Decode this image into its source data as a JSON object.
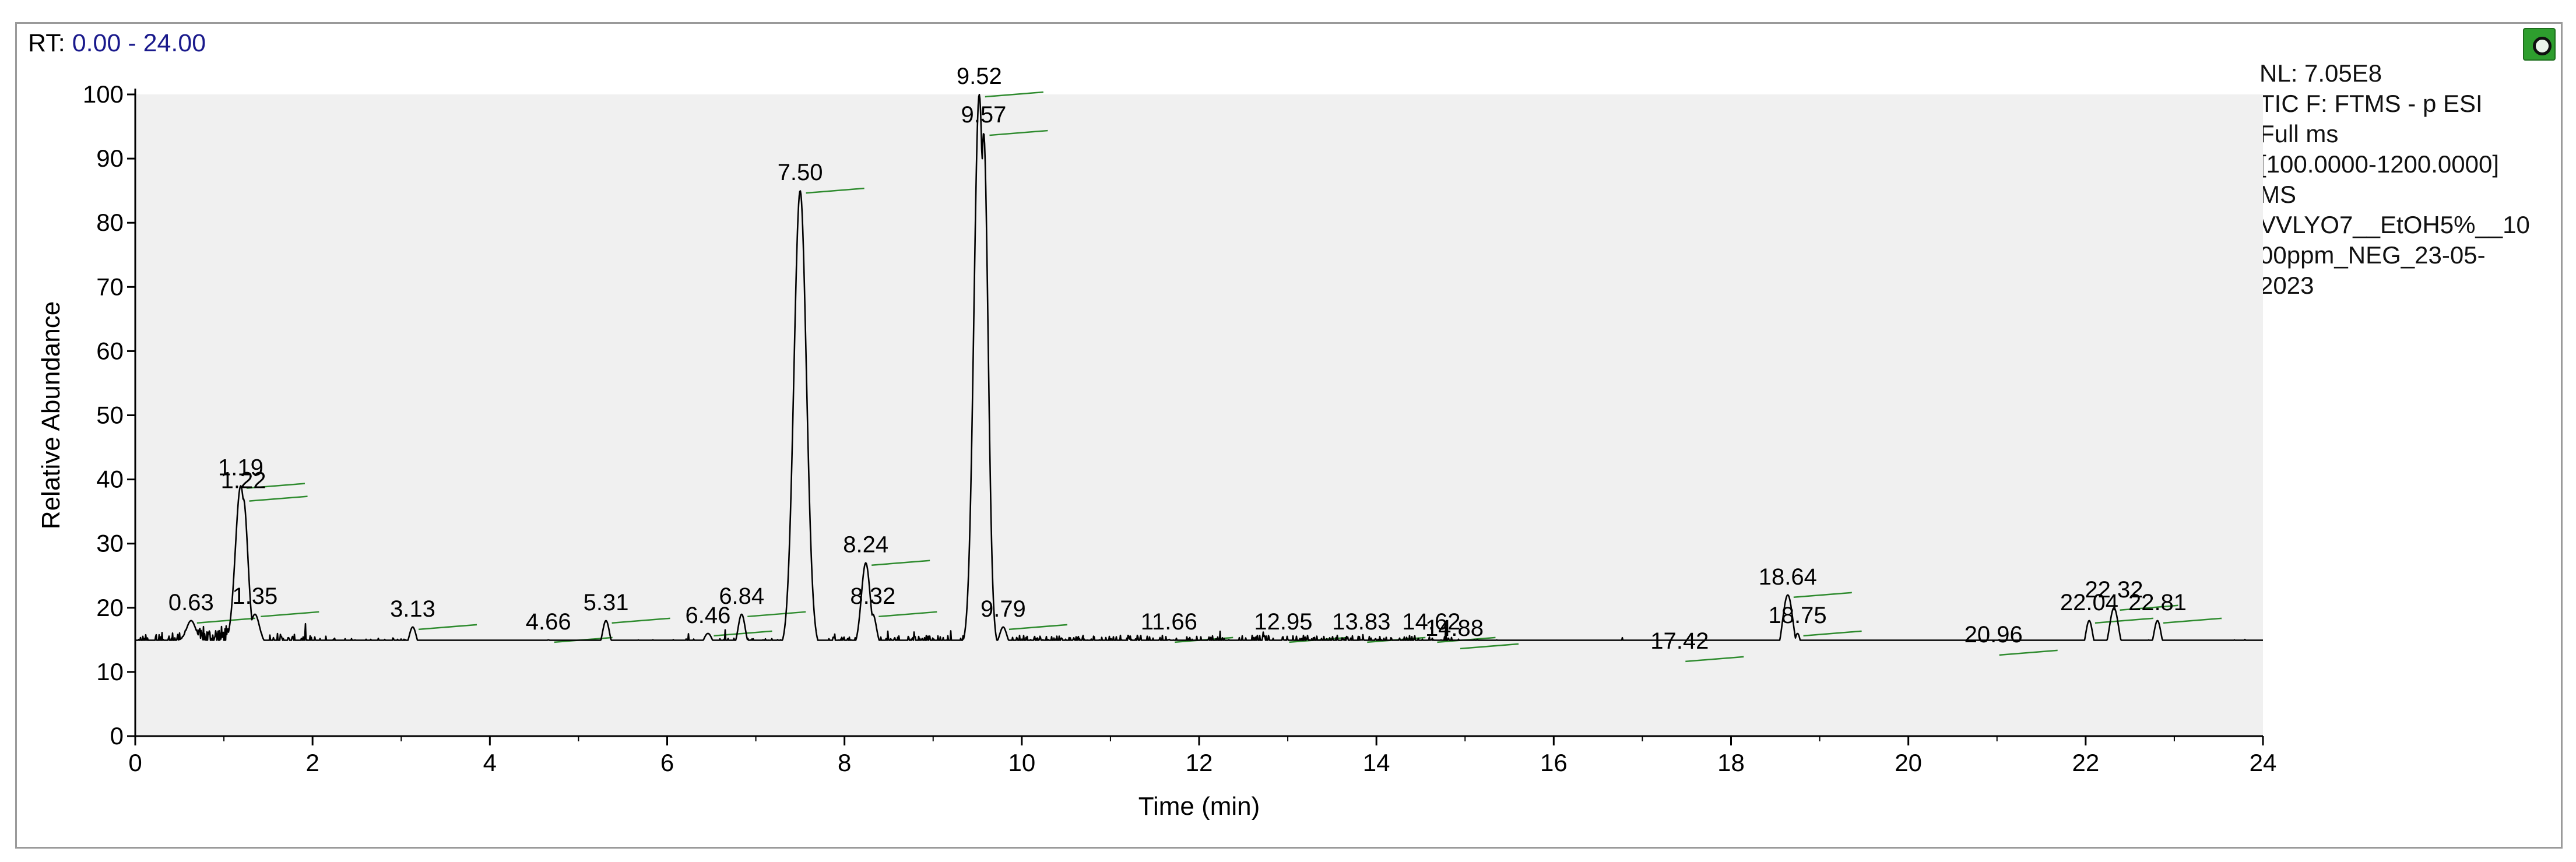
{
  "header": {
    "rt_prefix": "RT:",
    "rt_range": "0.00 - 24.00"
  },
  "info_panel": {
    "lines": [
      "NL: 7.05E8",
      "TIC F: FTMS - p ESI",
      "Full ms",
      "[100.0000-1200.0000]",
      "MS",
      "VVLYO7__EtOH5%__10",
      "00ppm_NEG_23-05-",
      "2023"
    ]
  },
  "chart_data": {
    "type": "line",
    "xlabel": "Time (min)",
    "ylabel": "Relative Abundance",
    "xlim": [
      0,
      24
    ],
    "ylim": [
      0,
      100
    ],
    "x_ticks": [
      0,
      2,
      4,
      6,
      8,
      10,
      12,
      14,
      16,
      18,
      20,
      22,
      24
    ],
    "y_ticks": [
      0,
      10,
      20,
      30,
      40,
      50,
      60,
      70,
      80,
      90,
      100
    ],
    "grid": false,
    "colors": {
      "trace": "#000000",
      "plot_bg": "#f0f0f0",
      "peak_marker": "#2e8b2e"
    },
    "peaks": [
      {
        "rt": 0.63,
        "label": "0.63",
        "y": 18,
        "width": 0.05
      },
      {
        "rt": 1.19,
        "label": "1.19",
        "y": 39,
        "width": 0.06
      },
      {
        "rt": 1.22,
        "label": "1.22",
        "y": 37,
        "width": 0.05
      },
      {
        "rt": 1.35,
        "label": "1.35",
        "y": 19,
        "width": 0.05
      },
      {
        "rt": 3.13,
        "label": "3.13",
        "y": 17,
        "width": 0.04
      },
      {
        "rt": 4.66,
        "label": "4.66",
        "y": 15,
        "width": 0.04
      },
      {
        "rt": 5.31,
        "label": "5.31",
        "y": 18,
        "width": 0.04
      },
      {
        "rt": 6.46,
        "label": "6.46",
        "y": 16,
        "width": 0.05
      },
      {
        "rt": 6.84,
        "label": "6.84",
        "y": 19,
        "width": 0.04
      },
      {
        "rt": 7.5,
        "label": "7.50",
        "y": 85,
        "width": 0.07
      },
      {
        "rt": 8.24,
        "label": "8.24",
        "y": 27,
        "width": 0.05
      },
      {
        "rt": 8.32,
        "label": "8.32",
        "y": 19,
        "width": 0.04
      },
      {
        "rt": 9.52,
        "label": "9.52",
        "y": 100,
        "width": 0.06
      },
      {
        "rt": 9.57,
        "label": "9.57",
        "y": 94,
        "width": 0.05
      },
      {
        "rt": 9.79,
        "label": "9.79",
        "y": 17,
        "width": 0.04
      },
      {
        "rt": 11.66,
        "label": "11.66",
        "y": 15,
        "width": 0.05
      },
      {
        "rt": 12.95,
        "label": "12.95",
        "y": 15,
        "width": 0.05
      },
      {
        "rt": 13.83,
        "label": "13.83",
        "y": 15,
        "width": 0.05
      },
      {
        "rt": 14.62,
        "label": "14.62",
        "y": 15,
        "width": 0.05
      },
      {
        "rt": 14.88,
        "label": "14.88",
        "y": 14,
        "width": 0.04
      },
      {
        "rt": 17.42,
        "label": "17.42",
        "y": 12,
        "width": 0.05
      },
      {
        "rt": 18.64,
        "label": "18.64",
        "y": 22,
        "width": 0.06
      },
      {
        "rt": 18.75,
        "label": "18.75",
        "y": 16,
        "width": 0.04
      },
      {
        "rt": 20.96,
        "label": "20.96",
        "y": 13,
        "width": 0.05
      },
      {
        "rt": 22.04,
        "label": "22.04",
        "y": 18,
        "width": 0.04
      },
      {
        "rt": 22.32,
        "label": "22.32",
        "y": 20,
        "width": 0.05
      },
      {
        "rt": 22.81,
        "label": "22.81",
        "y": 18,
        "width": 0.04
      }
    ]
  }
}
